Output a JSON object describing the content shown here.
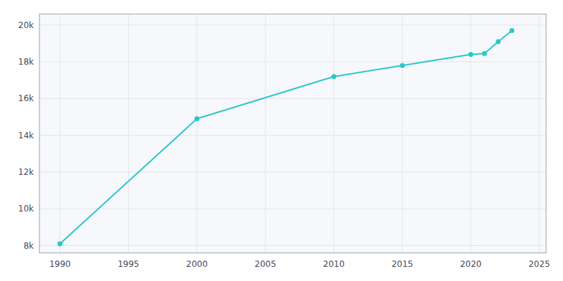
{
  "chart_data": {
    "type": "line",
    "x": [
      1990,
      2000,
      2010,
      2015,
      2020,
      2021,
      2022,
      2023
    ],
    "values": [
      8100,
      14900,
      17200,
      17800,
      18400,
      18450,
      19100,
      19700
    ],
    "color": "#28c8c8",
    "marker": "circle",
    "xlim": [
      1988.5,
      2025.5
    ],
    "ylim": [
      7600,
      20600
    ],
    "xticks": [
      1990,
      1995,
      2000,
      2005,
      2010,
      2015,
      2020,
      2025
    ],
    "yticks": [
      {
        "value": 8000,
        "label": "8k"
      },
      {
        "value": 10000,
        "label": "10k"
      },
      {
        "value": 12000,
        "label": "12k"
      },
      {
        "value": 14000,
        "label": "14k"
      },
      {
        "value": 16000,
        "label": "16k"
      },
      {
        "value": 18000,
        "label": "18k"
      },
      {
        "value": 20000,
        "label": "20k"
      }
    ],
    "grid": true
  }
}
